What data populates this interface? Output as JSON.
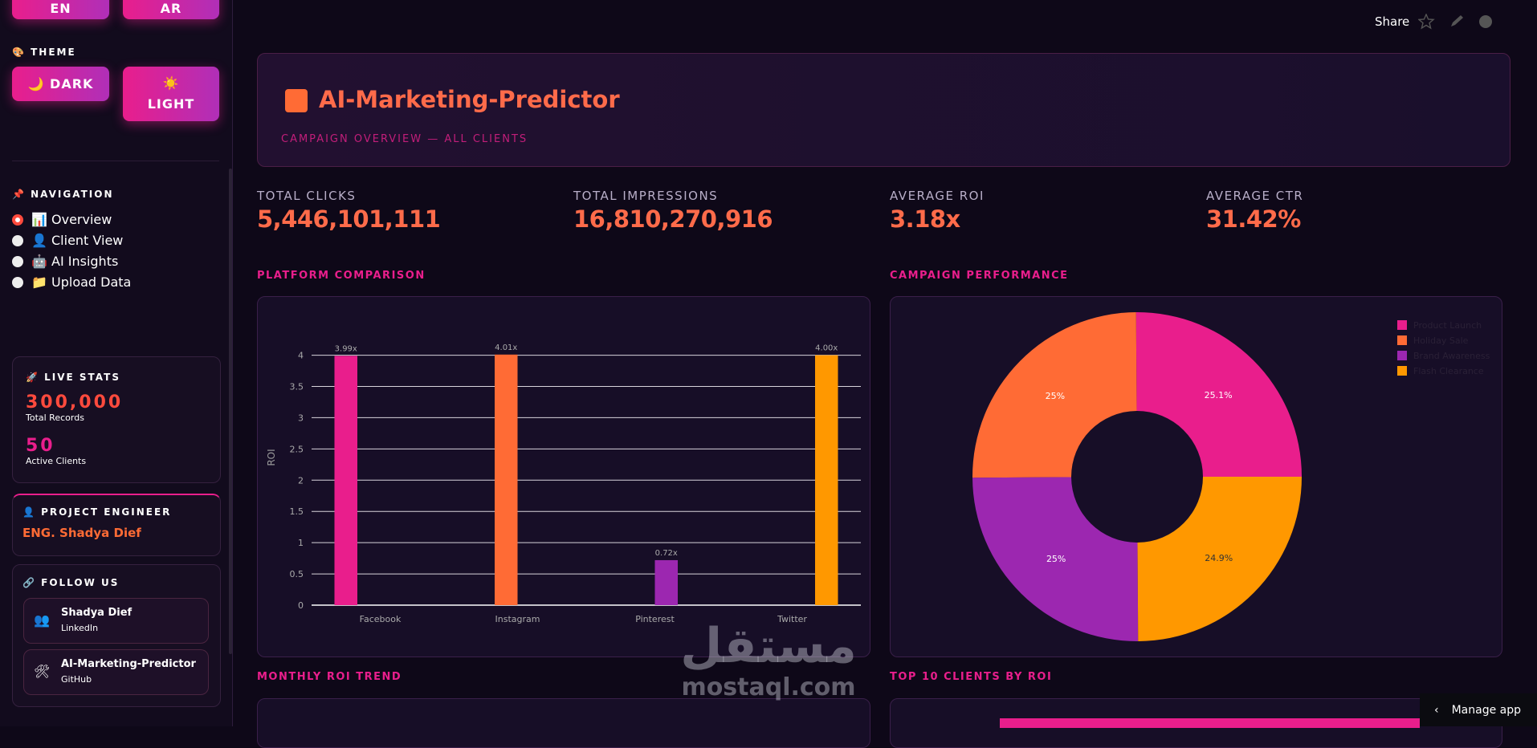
{
  "sidebar": {
    "language_buttons": [
      "EN",
      "AR"
    ],
    "theme_label": "🎨 THEME",
    "theme_buttons": [
      "🌙 DARK",
      "☀️ LIGHT"
    ],
    "navigation_label": "📌 NAVIGATION",
    "navigation_items": [
      "📊 Overview",
      "👤 Client View",
      "🤖 AI Insights",
      "📁 Upload Data"
    ],
    "live_stats": {
      "label": "🚀 LIVE STATS",
      "stats": [
        {
          "value": "300,000",
          "label": "Total Records"
        },
        {
          "value": "50",
          "label": "Active Clients"
        }
      ]
    },
    "engineer": {
      "label": "👤 PROJECT ENGINEER",
      "name": "ENG. Shadya Dief"
    },
    "follow": {
      "label": "🔗 FOLLOW US",
      "links": [
        {
          "icon": "👥",
          "title": "Shadya Dief",
          "subtitle": "LinkedIn"
        },
        {
          "icon": "🛠",
          "title": "AI-Marketing-Predictor",
          "subtitle": "GitHub"
        }
      ]
    }
  },
  "toolbar": {
    "share": "Share",
    "manage": "Manage app"
  },
  "header": {
    "title": "AI-Marketing-Predictor",
    "subtitle": "CAMPAIGN OVERVIEW — ALL CLIENTS"
  },
  "kpis": [
    {
      "label": "TOTAL CLICKS",
      "value": "5,446,101,111"
    },
    {
      "label": "TOTAL IMPRESSIONS",
      "value": "16,810,270,916"
    },
    {
      "label": "AVERAGE ROI",
      "value": "3.18x"
    },
    {
      "label": "AVERAGE CTR",
      "value": "31.42%"
    }
  ],
  "sections": [
    "PLATFORM COMPARISON",
    "CAMPAIGN PERFORMANCE",
    "MONTHLY ROI TREND",
    "TOP 10 CLIENTS BY ROI"
  ],
  "watermark": {
    "arabic": "مستقل",
    "latin": "mostaql.com"
  },
  "chart_data": [
    {
      "type": "bar",
      "ylabel": "ROI",
      "categories": [
        "Facebook",
        "Instagram",
        "Pinterest",
        "Twitter"
      ],
      "series": [
        {
          "name": "Facebook",
          "color": "#e91e8c",
          "values": [
            3.99,
            null,
            null,
            null
          ],
          "value_labels": [
            "3.99x",
            null,
            null,
            null
          ]
        },
        {
          "name": "Instagram",
          "color": "#ff6b35",
          "values": [
            null,
            4.01,
            null,
            null
          ],
          "value_labels": [
            null,
            "4.01x",
            null,
            null
          ]
        },
        {
          "name": "Pinterest",
          "color": "#9c27b0",
          "values": [
            null,
            null,
            0.72,
            null
          ],
          "value_labels": [
            null,
            null,
            "0.72x",
            null
          ]
        },
        {
          "name": "Twitter",
          "color": "#ff9800",
          "values": [
            null,
            null,
            null,
            4.0
          ],
          "value_labels": [
            null,
            null,
            null,
            "4.00x"
          ]
        }
      ],
      "ylim": [
        0,
        4.2
      ],
      "yticks": [
        0,
        0.5,
        1,
        1.5,
        2,
        2.5,
        3,
        3.5,
        4
      ],
      "grid": true
    },
    {
      "type": "pie",
      "hole": 0.4,
      "categories": [
        "Product Launch",
        "Holiday Sale",
        "Brand Awareness",
        "Flash Clearance"
      ],
      "values": [
        25.1,
        25,
        25,
        24.9
      ],
      "value_labels": [
        "25.1%",
        "25%",
        "25%",
        "24.9%"
      ],
      "colors": [
        "#e91e8c",
        "#ff6b35",
        "#9c27b0",
        "#ff9800"
      ],
      "legend": "top-right"
    }
  ]
}
